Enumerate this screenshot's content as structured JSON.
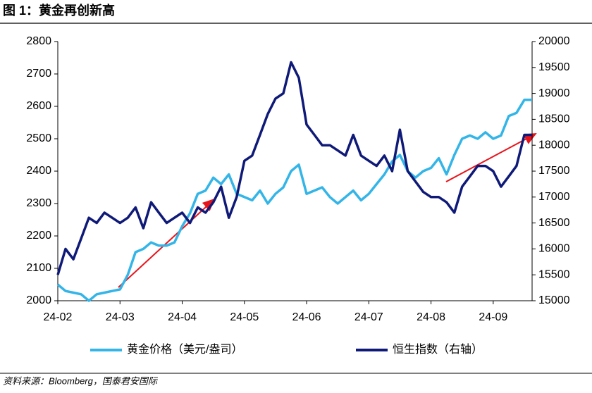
{
  "chart_data": {
    "type": "line",
    "title": "图 1：黄金再创新高",
    "source": "资料来源：Bloomberg，国泰君安国际",
    "categories": [
      "24-02",
      null,
      null,
      null,
      null,
      null,
      null,
      null,
      "24-03",
      null,
      null,
      null,
      null,
      null,
      null,
      null,
      "24-04",
      null,
      null,
      null,
      null,
      null,
      null,
      null,
      "24-05",
      null,
      null,
      null,
      null,
      null,
      null,
      null,
      "24-06",
      null,
      null,
      null,
      null,
      null,
      null,
      null,
      "24-07",
      null,
      null,
      null,
      null,
      null,
      null,
      null,
      "24-08",
      null,
      null,
      null,
      null,
      null,
      null,
      null,
      "24-09",
      null,
      null,
      null,
      null,
      null
    ],
    "series": [
      {
        "name": "黄金价格（美元/盎司）",
        "color": "#33b5e8",
        "axis": "y",
        "values": [
          2050,
          2030,
          2025,
          2020,
          2000,
          2020,
          2025,
          2030,
          2035,
          2080,
          2150,
          2160,
          2180,
          2170,
          2170,
          2180,
          2230,
          2270,
          2330,
          2340,
          2380,
          2360,
          2390,
          2330,
          2320,
          2310,
          2340,
          2300,
          2330,
          2350,
          2400,
          2420,
          2330,
          2340,
          2350,
          2320,
          2300,
          2320,
          2340,
          2310,
          2330,
          2360,
          2390,
          2430,
          2450,
          2400,
          2380,
          2400,
          2410,
          2440,
          2390,
          2450,
          2500,
          2510,
          2500,
          2520,
          2500,
          2510,
          2570,
          2580,
          2620,
          2620
        ]
      },
      {
        "name": "恒生指数（右轴）",
        "color": "#0f1a78",
        "axis": "y2",
        "values": [
          15500,
          16000,
          15800,
          16200,
          16600,
          16500,
          16700,
          16600,
          16500,
          16600,
          16800,
          16400,
          16900,
          16700,
          16500,
          16600,
          16700,
          16500,
          16800,
          16700,
          16900,
          17200,
          16600,
          17000,
          17700,
          17800,
          18200,
          18600,
          18900,
          19000,
          19600,
          19300,
          18400,
          18200,
          18000,
          18000,
          17900,
          17800,
          18200,
          17800,
          17700,
          17600,
          17800,
          17500,
          18300,
          17500,
          17300,
          17100,
          17000,
          17000,
          16900,
          16700,
          17200,
          17400,
          17600,
          17600,
          17500,
          17200,
          17400,
          17600,
          18200,
          18200
        ]
      }
    ],
    "ylim": [
      2000,
      2800
    ],
    "yticks": [
      2000,
      2100,
      2200,
      2300,
      2400,
      2500,
      2600,
      2700,
      2800
    ],
    "y2lim": [
      15000,
      20000
    ],
    "y2ticks": [
      15000,
      15500,
      16000,
      16500,
      17000,
      17500,
      18000,
      18500,
      19000,
      19500,
      20000
    ],
    "legend": "bottom"
  }
}
